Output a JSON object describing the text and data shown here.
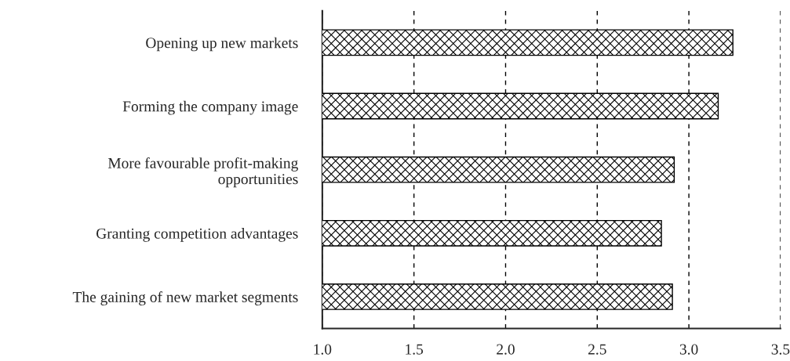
{
  "chart_data": {
    "type": "bar",
    "orientation": "horizontal",
    "categories": [
      "Opening up new markets",
      "Forming the company image",
      "More favourable profit-making\nopportunities",
      "Granting competition advantages",
      "The gaining of new market segments"
    ],
    "values": [
      3.24,
      3.16,
      2.92,
      2.85,
      2.91
    ],
    "color": "#000000",
    "xlim": [
      1.0,
      3.5
    ],
    "xticks": [
      {
        "value": 1.0,
        "label": "1.0"
      },
      1.5,
      {
        "value": 2.0,
        "label": "2.0"
      },
      2.5,
      {
        "value": 3.0,
        "label": "3.0"
      },
      3.5
    ],
    "grid": "x",
    "line_style": "dashed"
  }
}
